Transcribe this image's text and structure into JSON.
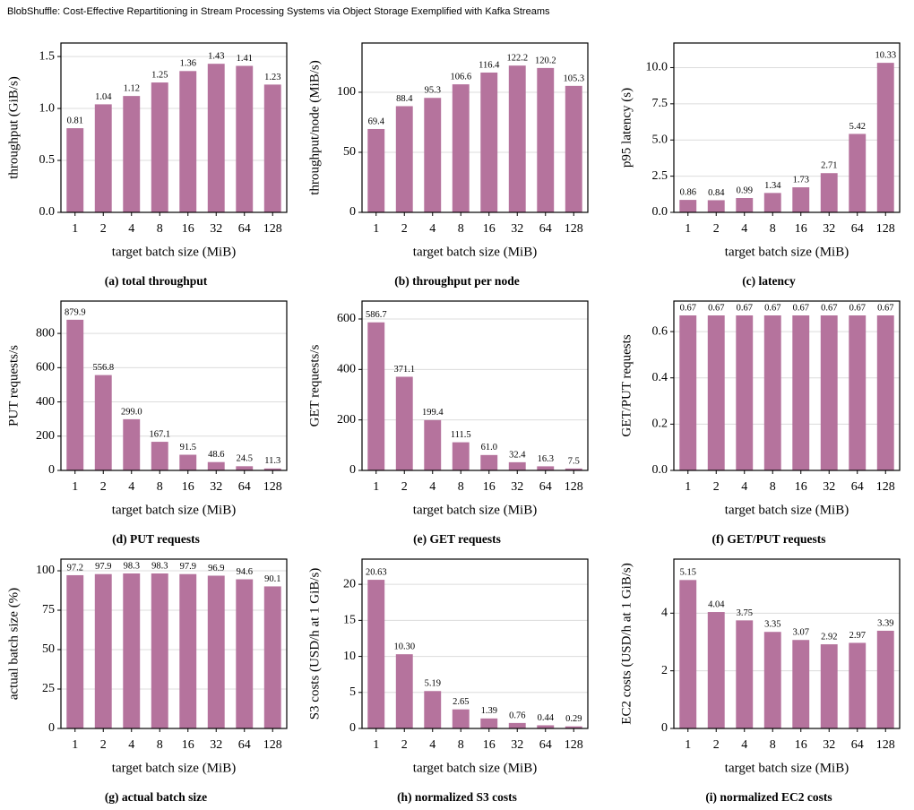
{
  "title": "BlobShuffle: Cost-Effective Repartitioning in Stream Processing Systems via Object Storage Exemplified with Kafka Streams",
  "chart_data": [
    {
      "type": "bar",
      "caption": "(a) total throughput",
      "ylabel": "throughput (GiB/s)",
      "xlabel": "target batch size (MiB)",
      "color": "#b5739d",
      "grid": true,
      "categories": [
        "1",
        "2",
        "4",
        "8",
        "16",
        "32",
        "64",
        "128"
      ],
      "values": [
        0.81,
        1.04,
        1.12,
        1.25,
        1.36,
        1.43,
        1.41,
        1.23
      ],
      "ylim": [
        0,
        1.63
      ],
      "yticks": [
        {
          "value": 0,
          "label": "0.0"
        },
        0.5,
        {
          "value": 1,
          "label": "1.0"
        },
        1.5
      ]
    },
    {
      "type": "bar",
      "caption": "(b) throughput per node",
      "ylabel": "throughput/node (MiB/s)",
      "xlabel": "target batch size (MiB)",
      "color": "#b5739d",
      "grid": true,
      "categories": [
        "1",
        "2",
        "4",
        "8",
        "16",
        "32",
        "64",
        "128"
      ],
      "values": [
        69.4,
        88.4,
        95.3,
        106.6,
        116.4,
        122.2,
        120.2,
        105.3
      ],
      "ylim": [
        0,
        141
      ],
      "yticks": [
        0,
        50,
        100
      ]
    },
    {
      "type": "bar",
      "caption": "(c) latency",
      "ylabel": "p95 latency (s)",
      "xlabel": "target batch size (MiB)",
      "color": "#b5739d",
      "grid": true,
      "categories": [
        "1",
        "2",
        "4",
        "8",
        "16",
        "32",
        "64",
        "128"
      ],
      "values": [
        0.86,
        0.84,
        0.99,
        1.34,
        1.73,
        2.71,
        5.42,
        10.33
      ],
      "ylim": [
        0,
        11.7
      ],
      "yticks": [
        {
          "value": 0,
          "label": "0.0"
        },
        2.5,
        {
          "value": 5,
          "label": "5.0"
        },
        7.5,
        {
          "value": 10,
          "label": "10.0"
        }
      ]
    },
    {
      "type": "bar",
      "caption": "(d) PUT requests",
      "ylabel": "PUT requests/s",
      "xlabel": "target batch size (MiB)",
      "color": "#b5739d",
      "grid": true,
      "categories": [
        "1",
        "2",
        "4",
        "8",
        "16",
        "32",
        "64",
        "128"
      ],
      "values": [
        879.9,
        556.8,
        299,
        167.1,
        91.5,
        48.6,
        24.5,
        11.3
      ],
      "value_labels": [
        "879.9",
        "556.8",
        "299.0",
        "167.1",
        "91.5",
        "48.6",
        "24.5",
        "11.3"
      ],
      "ylim": [
        0,
        989
      ],
      "yticks": [
        0,
        200,
        400,
        600,
        800
      ]
    },
    {
      "type": "bar",
      "caption": "(e) GET requests",
      "ylabel": "GET requests/s",
      "xlabel": "target batch size (MiB)",
      "color": "#b5739d",
      "grid": true,
      "categories": [
        "1",
        "2",
        "4",
        "8",
        "16",
        "32",
        "64",
        "128"
      ],
      "values": [
        586.7,
        371.1,
        199.4,
        111.5,
        61,
        32.4,
        16.3,
        7.5
      ],
      "value_labels": [
        "586.7",
        "371.1",
        "199.4",
        "111.5",
        "61.0",
        "32.4",
        "16.3",
        "7.5"
      ],
      "ylim": [
        0,
        671
      ],
      "yticks": [
        0,
        200,
        400,
        600
      ]
    },
    {
      "type": "bar",
      "caption": "(f) GET/PUT requests",
      "ylabel": "GET/PUT requests",
      "xlabel": "target batch size (MiB)",
      "color": "#b5739d",
      "grid": true,
      "categories": [
        "1",
        "2",
        "4",
        "8",
        "16",
        "32",
        "64",
        "128"
      ],
      "values": [
        0.67,
        0.67,
        0.67,
        0.67,
        0.67,
        0.67,
        0.67,
        0.67
      ],
      "ylim": [
        0,
        0.732
      ],
      "yticks": [
        {
          "value": 0,
          "label": "0.0"
        },
        0.2,
        0.4,
        0.6
      ]
    },
    {
      "type": "bar",
      "caption": "(g) actual batch size",
      "ylabel": "actual batch size (%)",
      "xlabel": "target batch size (MiB)",
      "color": "#b5739d",
      "grid": true,
      "categories": [
        "1",
        "2",
        "4",
        "8",
        "16",
        "32",
        "64",
        "128"
      ],
      "values": [
        97.2,
        97.9,
        98.3,
        98.3,
        97.9,
        96.9,
        94.6,
        90.1
      ],
      "ylim": [
        0,
        107.4
      ],
      "yticks": [
        0,
        25,
        50,
        75,
        100
      ]
    },
    {
      "type": "bar",
      "caption": "(h) normalized S3 costs",
      "ylabel": "S3 costs (USD/h at 1 GiB/s)",
      "xlabel": "target batch size (MiB)",
      "color": "#b5739d",
      "grid": true,
      "categories": [
        "1",
        "2",
        "4",
        "8",
        "16",
        "32",
        "64",
        "128"
      ],
      "values": [
        20.63,
        10.3,
        5.19,
        2.65,
        1.39,
        0.76,
        0.44,
        0.29
      ],
      "value_labels": [
        "20.63",
        "10.30",
        "5.19",
        "2.65",
        "1.39",
        "0.76",
        "0.44",
        "0.29"
      ],
      "ylim": [
        0,
        23.5
      ],
      "yticks": [
        0,
        5,
        10,
        15,
        20
      ]
    },
    {
      "type": "bar",
      "caption": "(i) normalized EC2 costs",
      "ylabel": "EC2 costs (USD/h at 1 GiB/s)",
      "xlabel": "target batch size (MiB)",
      "color": "#b5739d",
      "grid": true,
      "categories": [
        "1",
        "2",
        "4",
        "8",
        "16",
        "32",
        "64",
        "128"
      ],
      "values": [
        5.15,
        4.04,
        3.75,
        3.35,
        3.07,
        2.92,
        2.97,
        3.39
      ],
      "ylim": [
        0,
        5.875
      ],
      "yticks": [
        0,
        2,
        4
      ]
    }
  ]
}
